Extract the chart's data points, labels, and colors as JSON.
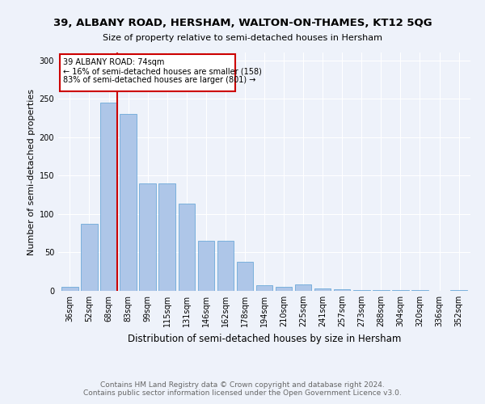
{
  "title1": "39, ALBANY ROAD, HERSHAM, WALTON-ON-THAMES, KT12 5QG",
  "title2": "Size of property relative to semi-detached houses in Hersham",
  "xlabel": "Distribution of semi-detached houses by size in Hersham",
  "ylabel": "Number of semi-detached properties",
  "categories": [
    "36sqm",
    "52sqm",
    "68sqm",
    "83sqm",
    "99sqm",
    "115sqm",
    "131sqm",
    "146sqm",
    "162sqm",
    "178sqm",
    "194sqm",
    "210sqm",
    "225sqm",
    "241sqm",
    "257sqm",
    "273sqm",
    "288sqm",
    "304sqm",
    "320sqm",
    "336sqm",
    "352sqm"
  ],
  "values": [
    5,
    87,
    245,
    230,
    140,
    140,
    113,
    65,
    65,
    38,
    7,
    5,
    8,
    3,
    2,
    1,
    1,
    1,
    1,
    0,
    1
  ],
  "bar_color": "#aec6e8",
  "bar_edge_color": "#5a9fd4",
  "red_line_x": 2,
  "annotation_title": "39 ALBANY ROAD: 74sqm",
  "annotation_line1": "← 16% of semi-detached houses are smaller (158)",
  "annotation_line2": "83% of semi-detached houses are larger (801) →",
  "annotation_box_color": "#ffffff",
  "annotation_box_edge": "#cc0000",
  "footer1": "Contains HM Land Registry data © Crown copyright and database right 2024.",
  "footer2": "Contains public sector information licensed under the Open Government Licence v3.0.",
  "ylim": [
    0,
    310
  ],
  "yticks": [
    0,
    50,
    100,
    150,
    200,
    250,
    300
  ],
  "background_color": "#eef2fa",
  "plot_background": "#eef2fa",
  "grid_color": "#ffffff",
  "title1_fontsize": 9.5,
  "title2_fontsize": 8,
  "xlabel_fontsize": 8.5,
  "ylabel_fontsize": 8,
  "tick_fontsize": 7,
  "footer_fontsize": 6.5
}
